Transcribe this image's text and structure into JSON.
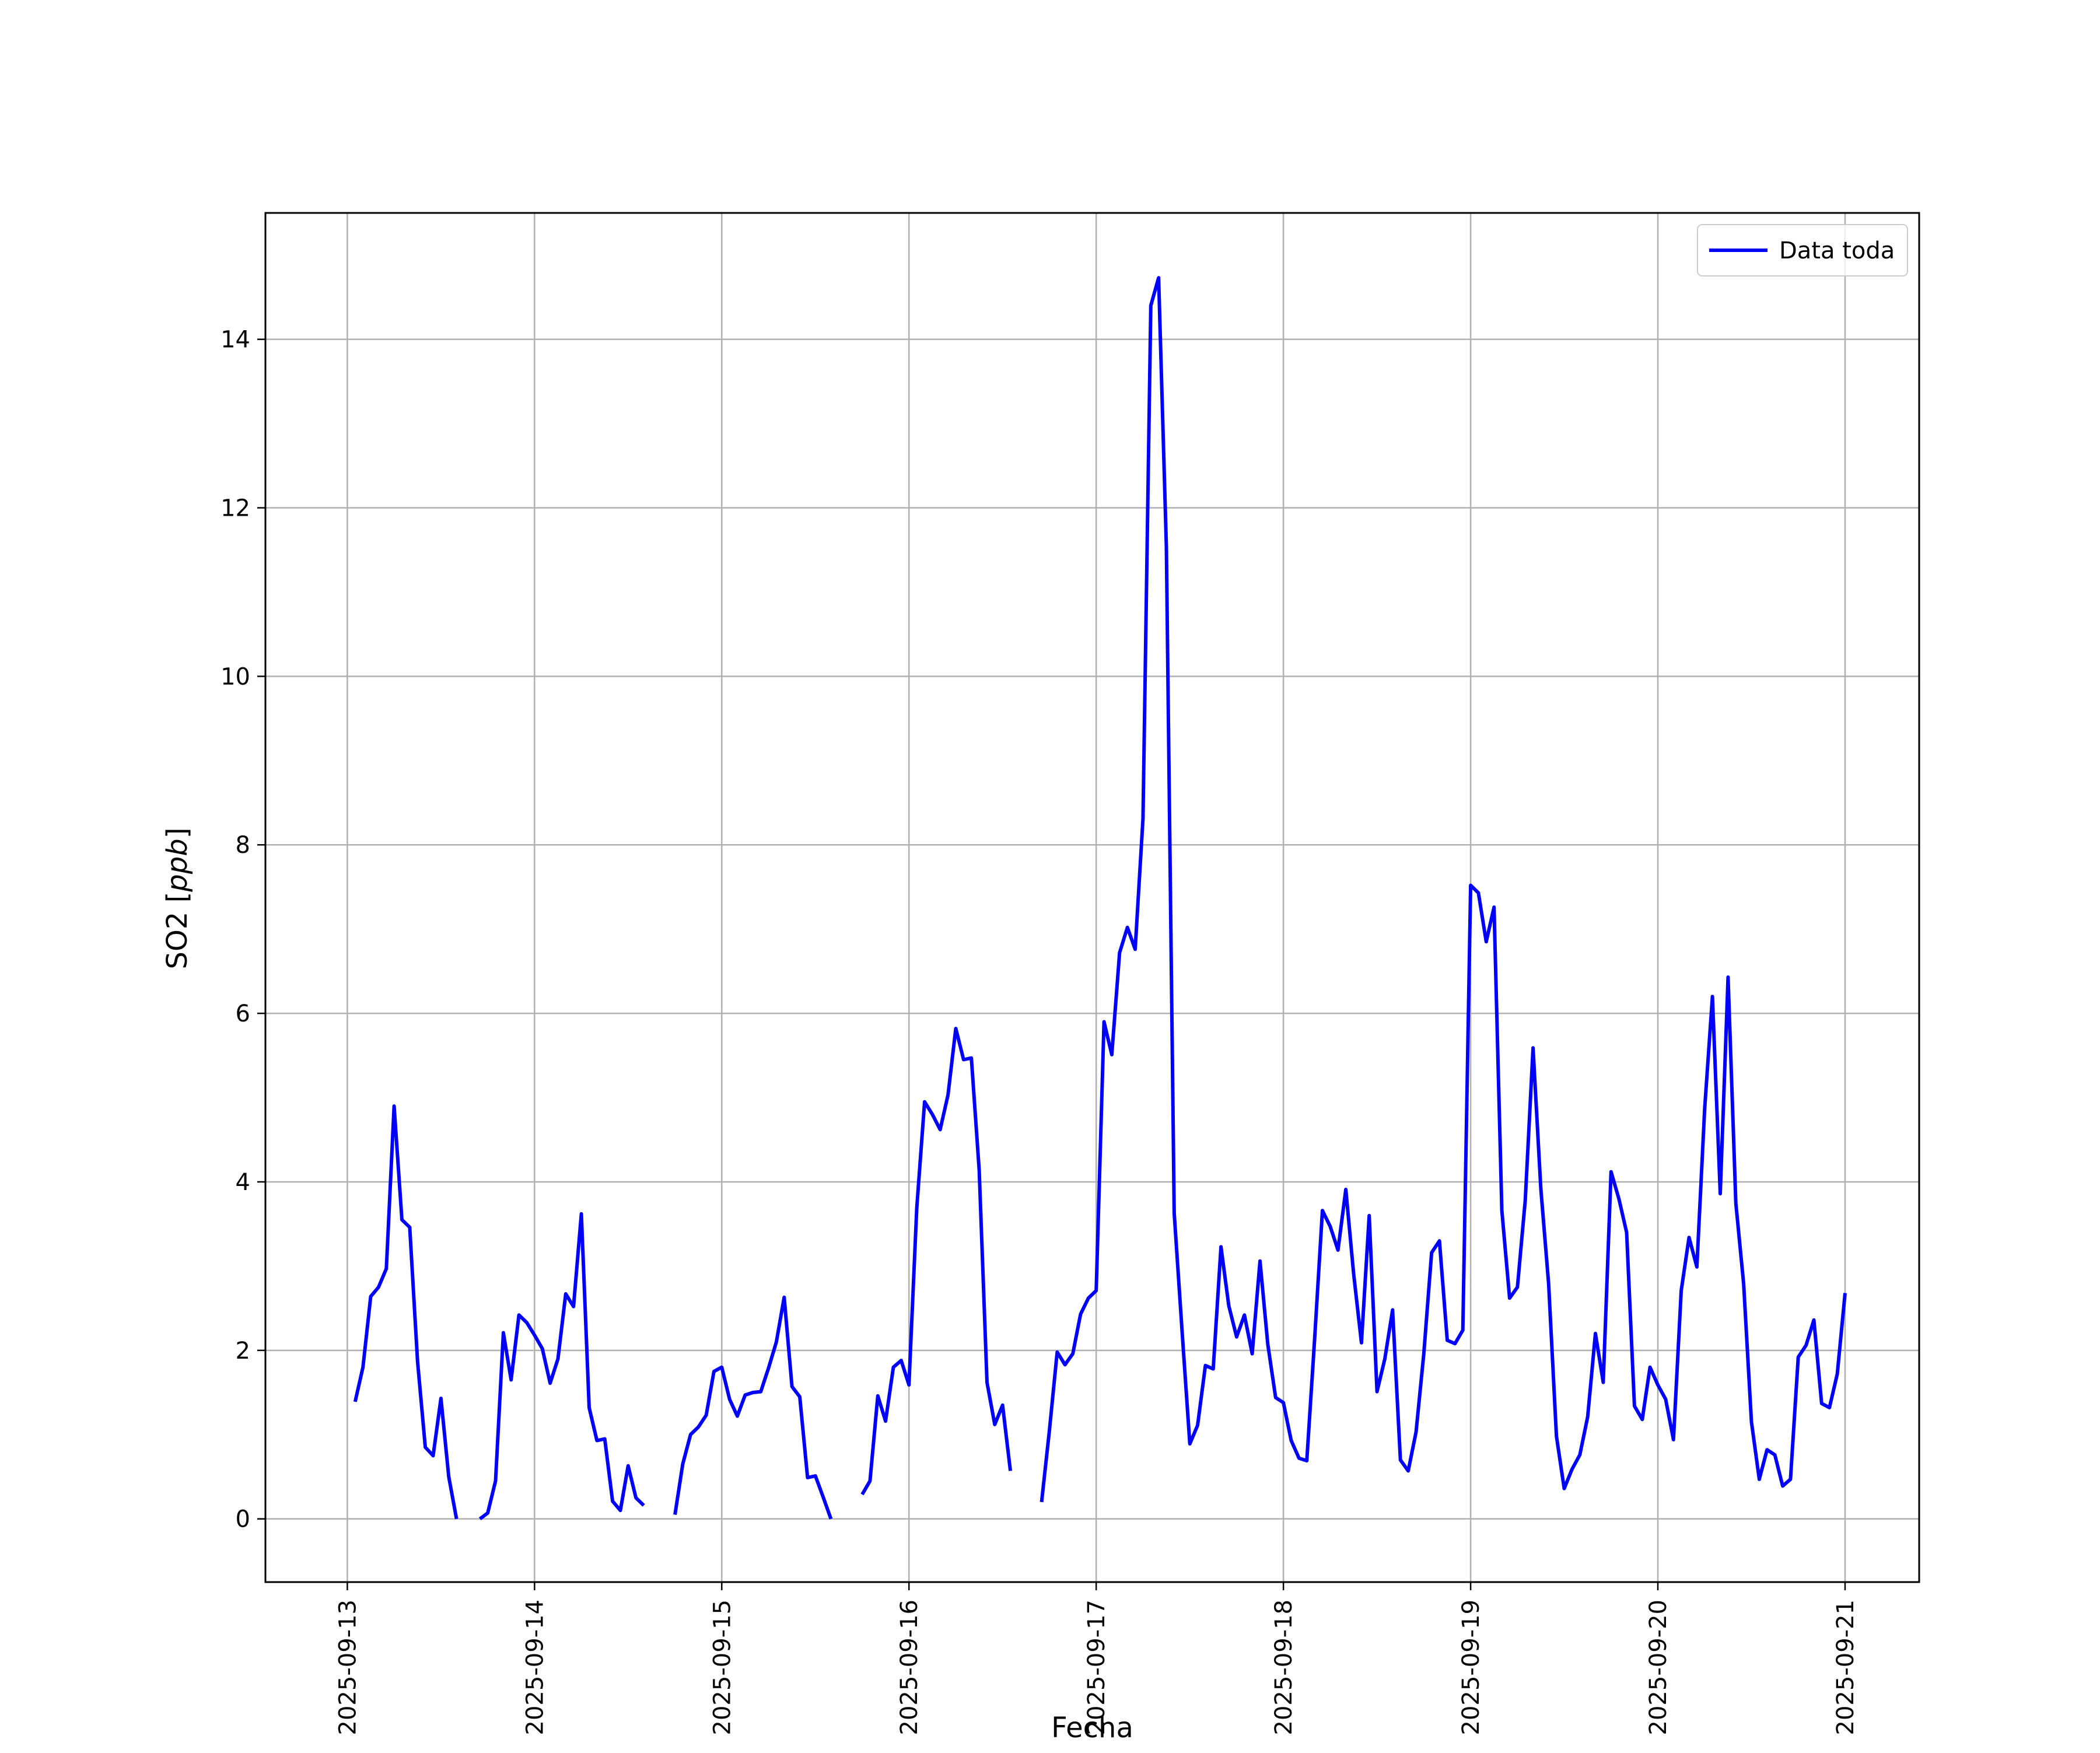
{
  "chart_data": {
    "type": "line",
    "xlabel": "Fecha",
    "ylabel_prefix": "SO2 [",
    "ylabel_unit": "ppb",
    "ylabel_suffix": "]",
    "xlim": [
      "2025-09-12T13:30",
      "2025-09-21T09:30"
    ],
    "ylim": [
      -0.75,
      15.5
    ],
    "grid": true,
    "legend_position": "top-right",
    "x_ticks": [
      "2025-09-13",
      "2025-09-14",
      "2025-09-15",
      "2025-09-16",
      "2025-09-17",
      "2025-09-18",
      "2025-09-19",
      "2025-09-20",
      "2025-09-21"
    ],
    "y_ticks": [
      0,
      2,
      4,
      6,
      8,
      10,
      12,
      14
    ],
    "series": [
      {
        "name": "Data toda",
        "color": "#0000ff",
        "points": [
          [
            "2025-09-13T01:00",
            1.39
          ],
          [
            "2025-09-13T02:00",
            1.8
          ],
          [
            "2025-09-13T03:00",
            2.64
          ],
          [
            "2025-09-13T04:00",
            2.75
          ],
          [
            "2025-09-13T05:00",
            2.97
          ],
          [
            "2025-09-13T06:00",
            4.9
          ],
          [
            "2025-09-13T07:00",
            3.55
          ],
          [
            "2025-09-13T08:00",
            3.46
          ],
          [
            "2025-09-13T09:00",
            1.87
          ],
          [
            "2025-09-13T10:00",
            0.85
          ],
          [
            "2025-09-13T11:00",
            0.75
          ],
          [
            "2025-09-13T12:00",
            1.43
          ],
          [
            "2025-09-13T13:00",
            0.5
          ],
          [
            "2025-09-13T14:00",
            0.0
          ],
          null,
          [
            "2025-09-13T17:00",
            0.0
          ],
          [
            "2025-09-13T18:00",
            0.07
          ],
          [
            "2025-09-13T19:00",
            0.45
          ],
          [
            "2025-09-13T20:00",
            2.21
          ],
          [
            "2025-09-13T21:00",
            1.65
          ],
          [
            "2025-09-13T22:00",
            2.42
          ],
          [
            "2025-09-13T23:00",
            2.33
          ],
          [
            "2025-09-14T00:00",
            2.18
          ],
          [
            "2025-09-14T01:00",
            2.02
          ],
          [
            "2025-09-14T02:00",
            1.61
          ],
          [
            "2025-09-14T03:00",
            1.9
          ],
          [
            "2025-09-14T04:00",
            2.67
          ],
          [
            "2025-09-14T05:00",
            2.52
          ],
          [
            "2025-09-14T06:00",
            3.62
          ],
          [
            "2025-09-14T07:00",
            1.32
          ],
          [
            "2025-09-14T08:00",
            0.93
          ],
          [
            "2025-09-14T09:00",
            0.95
          ],
          [
            "2025-09-14T10:00",
            0.21
          ],
          [
            "2025-09-14T11:00",
            0.1
          ],
          [
            "2025-09-14T12:00",
            0.63
          ],
          [
            "2025-09-14T13:00",
            0.25
          ],
          [
            "2025-09-14T14:00",
            0.16
          ],
          null,
          [
            "2025-09-14T18:00",
            0.05
          ],
          [
            "2025-09-14T19:00",
            0.65
          ],
          [
            "2025-09-14T20:00",
            1.0
          ],
          [
            "2025-09-14T21:00",
            1.09
          ],
          [
            "2025-09-14T22:00",
            1.23
          ],
          [
            "2025-09-14T23:00",
            1.75
          ],
          [
            "2025-09-15T00:00",
            1.8
          ],
          [
            "2025-09-15T01:00",
            1.42
          ],
          [
            "2025-09-15T02:00",
            1.22
          ],
          [
            "2025-09-15T03:00",
            1.47
          ],
          [
            "2025-09-15T04:00",
            1.5
          ],
          [
            "2025-09-15T05:00",
            1.51
          ],
          [
            "2025-09-15T06:00",
            1.79
          ],
          [
            "2025-09-15T07:00",
            2.1
          ],
          [
            "2025-09-15T08:00",
            2.63
          ],
          [
            "2025-09-15T09:00",
            1.57
          ],
          [
            "2025-09-15T10:00",
            1.45
          ],
          [
            "2025-09-15T11:00",
            0.49
          ],
          [
            "2025-09-15T12:00",
            0.51
          ],
          [
            "2025-09-15T13:00",
            0.26
          ],
          [
            "2025-09-15T14:00",
            0.0
          ],
          null,
          [
            "2025-09-15T18:00",
            0.29
          ],
          [
            "2025-09-15T19:00",
            0.45
          ],
          [
            "2025-09-15T20:00",
            1.46
          ],
          [
            "2025-09-15T21:00",
            1.16
          ],
          [
            "2025-09-15T22:00",
            1.8
          ],
          [
            "2025-09-15T23:00",
            1.88
          ],
          [
            "2025-09-16T00:00",
            1.59
          ],
          [
            "2025-09-16T01:00",
            3.69
          ],
          [
            "2025-09-16T02:00",
            4.95
          ],
          [
            "2025-09-16T03:00",
            4.8
          ],
          [
            "2025-09-16T04:00",
            4.62
          ],
          [
            "2025-09-16T05:00",
            5.03
          ],
          [
            "2025-09-16T06:00",
            5.82
          ],
          [
            "2025-09-16T07:00",
            5.45
          ],
          [
            "2025-09-16T08:00",
            5.47
          ],
          [
            "2025-09-16T09:00",
            4.14
          ],
          [
            "2025-09-16T10:00",
            1.62
          ],
          [
            "2025-09-16T11:00",
            1.12
          ],
          [
            "2025-09-16T12:00",
            1.35
          ],
          [
            "2025-09-16T13:00",
            0.57
          ],
          null,
          [
            "2025-09-16T17:00",
            0.2
          ],
          [
            "2025-09-16T18:00",
            1.05
          ],
          [
            "2025-09-16T19:00",
            1.98
          ],
          [
            "2025-09-16T20:00",
            1.83
          ],
          [
            "2025-09-16T21:00",
            1.96
          ],
          [
            "2025-09-16T22:00",
            2.43
          ],
          [
            "2025-09-16T23:00",
            2.62
          ],
          [
            "2025-09-17T00:00",
            2.71
          ],
          [
            "2025-09-17T01:00",
            5.9
          ],
          [
            "2025-09-17T02:00",
            5.51
          ],
          [
            "2025-09-17T03:00",
            6.72
          ],
          [
            "2025-09-17T04:00",
            7.02
          ],
          [
            "2025-09-17T05:00",
            6.76
          ],
          [
            "2025-09-17T06:00",
            8.31
          ],
          [
            "2025-09-17T07:00",
            14.4
          ],
          [
            "2025-09-17T08:00",
            14.73
          ],
          [
            "2025-09-17T09:00",
            11.54
          ],
          [
            "2025-09-17T10:00",
            3.63
          ],
          [
            "2025-09-17T11:00",
            2.24
          ],
          [
            "2025-09-17T12:00",
            0.89
          ],
          [
            "2025-09-17T13:00",
            1.11
          ],
          [
            "2025-09-17T14:00",
            1.82
          ],
          [
            "2025-09-17T15:00",
            1.78
          ],
          [
            "2025-09-17T16:00",
            3.23
          ],
          [
            "2025-09-17T17:00",
            2.53
          ],
          [
            "2025-09-17T18:00",
            2.16
          ],
          [
            "2025-09-17T19:00",
            2.42
          ],
          [
            "2025-09-17T20:00",
            1.96
          ],
          [
            "2025-09-17T21:00",
            3.06
          ],
          [
            "2025-09-17T22:00",
            2.07
          ],
          [
            "2025-09-17T23:00",
            1.44
          ],
          [
            "2025-09-18T00:00",
            1.38
          ],
          [
            "2025-09-18T01:00",
            0.93
          ],
          [
            "2025-09-18T02:00",
            0.72
          ],
          [
            "2025-09-18T03:00",
            0.69
          ],
          [
            "2025-09-18T04:00",
            2.13
          ],
          [
            "2025-09-18T05:00",
            3.66
          ],
          [
            "2025-09-18T06:00",
            3.47
          ],
          [
            "2025-09-18T07:00",
            3.19
          ],
          [
            "2025-09-18T08:00",
            3.91
          ],
          [
            "2025-09-18T09:00",
            2.91
          ],
          [
            "2025-09-18T10:00",
            2.09
          ],
          [
            "2025-09-18T11:00",
            3.6
          ],
          [
            "2025-09-18T12:00",
            1.51
          ],
          [
            "2025-09-18T13:00",
            1.9
          ],
          [
            "2025-09-18T14:00",
            2.48
          ],
          [
            "2025-09-18T15:00",
            0.7
          ],
          [
            "2025-09-18T16:00",
            0.57
          ],
          [
            "2025-09-18T17:00",
            1.03
          ],
          [
            "2025-09-18T18:00",
            1.96
          ],
          [
            "2025-09-18T19:00",
            3.16
          ],
          [
            "2025-09-18T20:00",
            3.3
          ],
          [
            "2025-09-18T21:00",
            2.12
          ],
          [
            "2025-09-18T22:00",
            2.08
          ],
          [
            "2025-09-18T23:00",
            2.24
          ],
          [
            "2025-09-19T00:00",
            7.52
          ],
          [
            "2025-09-19T01:00",
            7.43
          ],
          [
            "2025-09-19T02:00",
            6.85
          ],
          [
            "2025-09-19T03:00",
            7.26
          ],
          [
            "2025-09-19T04:00",
            3.66
          ],
          [
            "2025-09-19T05:00",
            2.62
          ],
          [
            "2025-09-19T06:00",
            2.75
          ],
          [
            "2025-09-19T07:00",
            3.78
          ],
          [
            "2025-09-19T08:00",
            5.59
          ],
          [
            "2025-09-19T09:00",
            3.92
          ],
          [
            "2025-09-19T10:00",
            2.79
          ],
          [
            "2025-09-19T11:00",
            0.98
          ],
          [
            "2025-09-19T12:00",
            0.36
          ],
          [
            "2025-09-19T13:00",
            0.59
          ],
          [
            "2025-09-19T14:00",
            0.76
          ],
          [
            "2025-09-19T15:00",
            1.21
          ],
          [
            "2025-09-19T16:00",
            2.2
          ],
          [
            "2025-09-19T17:00",
            1.62
          ],
          [
            "2025-09-19T18:00",
            4.12
          ],
          [
            "2025-09-19T19:00",
            3.8
          ],
          [
            "2025-09-19T20:00",
            3.4
          ],
          [
            "2025-09-19T21:00",
            1.34
          ],
          [
            "2025-09-19T22:00",
            1.18
          ],
          [
            "2025-09-19T23:00",
            1.8
          ],
          [
            "2025-09-20T00:00",
            1.59
          ],
          [
            "2025-09-20T01:00",
            1.42
          ],
          [
            "2025-09-20T02:00",
            0.94
          ],
          [
            "2025-09-20T03:00",
            2.71
          ],
          [
            "2025-09-20T04:00",
            3.34
          ],
          [
            "2025-09-20T05:00",
            2.99
          ],
          [
            "2025-09-20T06:00",
            4.87
          ],
          [
            "2025-09-20T07:00",
            6.2
          ],
          [
            "2025-09-20T08:00",
            3.86
          ],
          [
            "2025-09-20T09:00",
            6.43
          ],
          [
            "2025-09-20T10:00",
            3.75
          ],
          [
            "2025-09-20T11:00",
            2.79
          ],
          [
            "2025-09-20T12:00",
            1.15
          ],
          [
            "2025-09-20T13:00",
            0.47
          ],
          [
            "2025-09-20T14:00",
            0.82
          ],
          [
            "2025-09-20T15:00",
            0.76
          ],
          [
            "2025-09-20T16:00",
            0.39
          ],
          [
            "2025-09-20T17:00",
            0.47
          ],
          [
            "2025-09-20T18:00",
            1.92
          ],
          [
            "2025-09-20T19:00",
            2.06
          ],
          [
            "2025-09-20T20:00",
            2.36
          ],
          [
            "2025-09-20T21:00",
            1.37
          ],
          [
            "2025-09-20T22:00",
            1.32
          ],
          [
            "2025-09-20T23:00",
            1.72
          ],
          [
            "2025-09-21T00:00",
            2.68
          ]
        ]
      }
    ]
  }
}
